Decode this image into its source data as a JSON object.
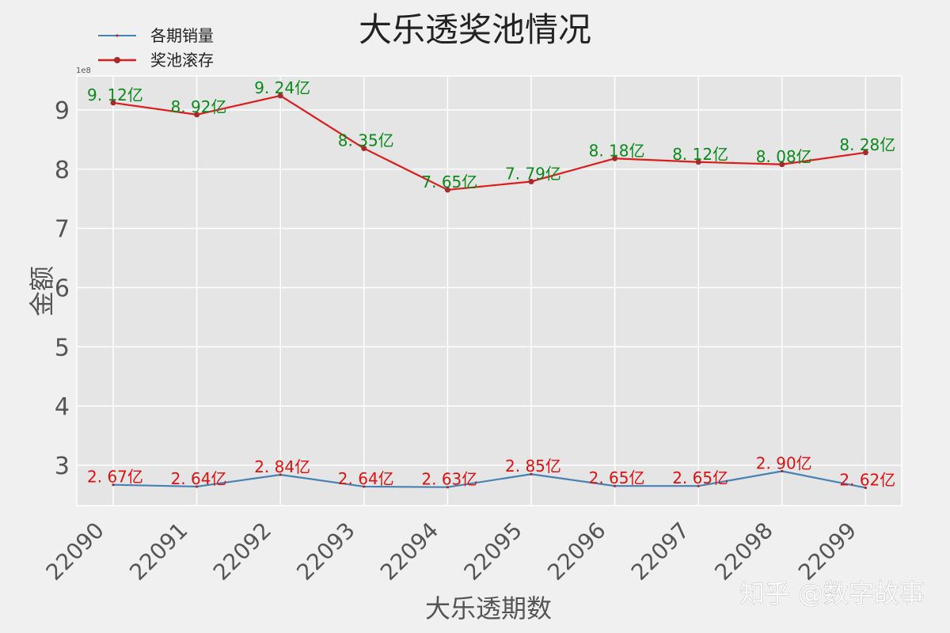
{
  "chart_data": {
    "type": "line",
    "title": "大乐透奖池情况",
    "xlabel": "大乐透期数",
    "ylabel": "金额",
    "y_offset_text": "1e8",
    "categories": [
      "22090",
      "22091",
      "22092",
      "22093",
      "22094",
      "22095",
      "22096",
      "22097",
      "22098",
      "22099"
    ],
    "series": [
      {
        "name": "各期销量",
        "color": "#4682b4",
        "marker": "star",
        "values": [
          267000000.0,
          264000000.0,
          284000000.0,
          264000000.0,
          263000000.0,
          285000000.0,
          265000000.0,
          265000000.0,
          290000000.0,
          262000000.0
        ],
        "labels": [
          "2.67亿",
          "2.64亿",
          "2.84亿",
          "2.64亿",
          "2.63亿",
          "2.85亿",
          "2.65亿",
          "2.65亿",
          "2.90亿",
          "2.62亿"
        ],
        "label_color": "#e01010"
      },
      {
        "name": "奖池滚存",
        "color": "#dd1c1c",
        "marker": "circle",
        "values": [
          912000000.0,
          892000000.0,
          924000000.0,
          835000000.0,
          765000000.0,
          779000000.0,
          818000000.0,
          812000000.0,
          808000000.0,
          828000000.0
        ],
        "labels": [
          "9.12亿",
          "8.92亿",
          "9.24亿",
          "8.35亿",
          "7.65亿",
          "7.79亿",
          "8.18亿",
          "8.12亿",
          "8.08亿",
          "8.28亿"
        ],
        "label_color": "#0a8a1a"
      }
    ],
    "yticks": [
      3,
      4,
      5,
      6,
      7,
      8,
      9
    ],
    "ylim": [
      2.32,
      9.57
    ],
    "grid": true,
    "legend_position": "upper left (outside, above plot)",
    "style": "ggplot-like gray background with white grid"
  },
  "watermark": "知乎 @数字故事"
}
